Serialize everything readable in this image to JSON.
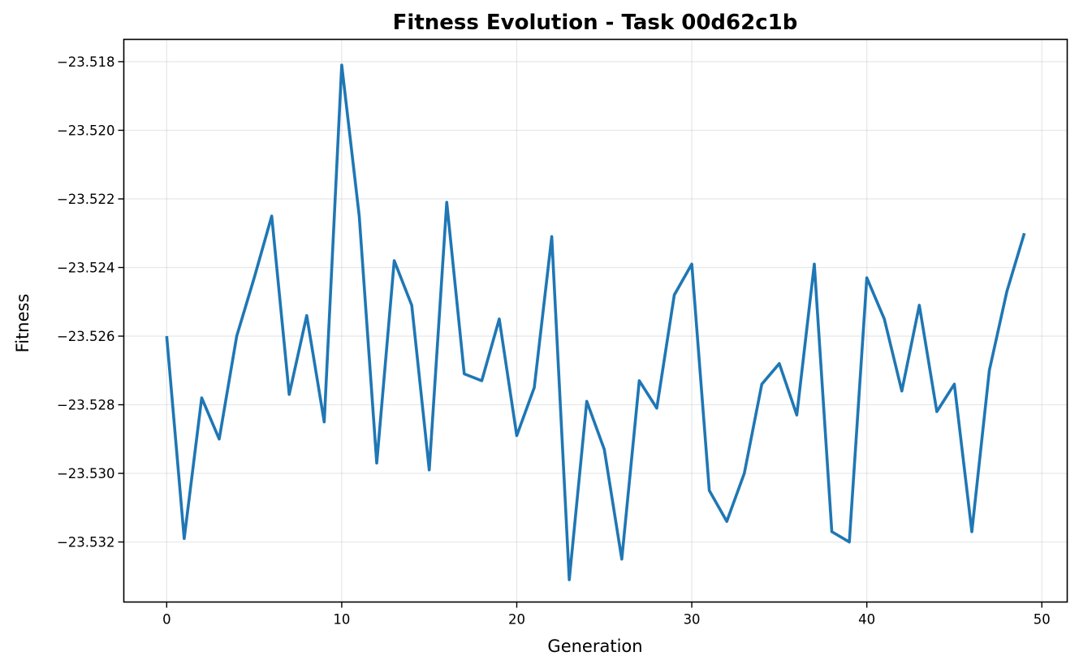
{
  "chart_data": {
    "type": "line",
    "title": "Fitness Evolution - Task 00d62c1b",
    "xlabel": "Generation",
    "ylabel": "Fitness",
    "xlim": [
      -2.45,
      51.45
    ],
    "ylim": [
      -23.53375,
      -23.51735
    ],
    "xticks": [
      0,
      10,
      20,
      30,
      40,
      50
    ],
    "xtick_labels": [
      "0",
      "10",
      "20",
      "30",
      "40",
      "50"
    ],
    "yticks": [
      -23.518,
      -23.52,
      -23.522,
      -23.524,
      -23.526,
      -23.528,
      -23.53,
      -23.532
    ],
    "ytick_labels": [
      "−23.518",
      "−23.520",
      "−23.522",
      "−23.524",
      "−23.526",
      "−23.528",
      "−23.530",
      "−23.532"
    ],
    "grid": true,
    "legend": "none",
    "color": "#1f77b4",
    "series": [
      {
        "x": [
          0,
          1,
          2,
          3,
          4,
          5,
          6,
          7,
          8,
          9,
          10,
          11,
          12,
          13,
          14,
          15,
          16,
          17,
          18,
          19,
          20,
          21,
          22,
          23,
          24,
          25,
          26,
          27,
          28,
          29,
          30,
          31,
          32,
          33,
          34,
          35,
          36,
          37,
          38,
          39,
          40,
          41,
          42,
          43,
          44,
          45,
          46,
          47,
          48,
          49
        ],
        "values": [
          -23.526,
          -23.5319,
          -23.5278,
          -23.529,
          -23.526,
          -23.5243,
          -23.5225,
          -23.5277,
          -23.5254,
          -23.5285,
          -23.5181,
          -23.5225,
          -23.5297,
          -23.5238,
          -23.5251,
          -23.5299,
          -23.5221,
          -23.5271,
          -23.5273,
          -23.5255,
          -23.5289,
          -23.5275,
          -23.5231,
          -23.5331,
          -23.5279,
          -23.5293,
          -23.5325,
          -23.5273,
          -23.5281,
          -23.5248,
          -23.5239,
          -23.5305,
          -23.5314,
          -23.53,
          -23.5274,
          -23.5268,
          -23.5283,
          -23.5239,
          -23.5317,
          -23.532,
          -23.5243,
          -23.5255,
          -23.5276,
          -23.5251,
          -23.5282,
          -23.5274,
          -23.5317,
          -23.527,
          -23.5247,
          -23.523
        ]
      }
    ]
  }
}
